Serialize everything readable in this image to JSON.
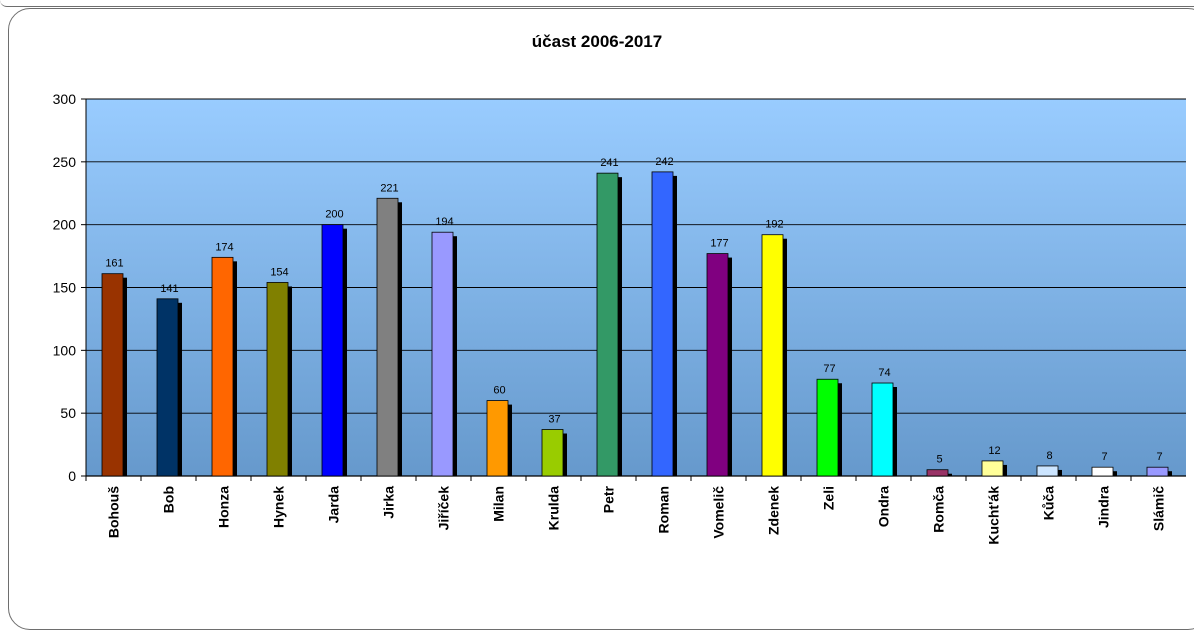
{
  "chart_data": {
    "type": "bar",
    "title": "účast 2006-2017",
    "xlabel": "",
    "ylabel": "",
    "ylim": [
      0,
      300
    ],
    "yticks": [
      0,
      50,
      100,
      150,
      200,
      250,
      300
    ],
    "grid": true,
    "legend": "none",
    "categories": [
      "Bohouš",
      "Bob",
      "Honza",
      "Hynek",
      "Jarda",
      "Jirka",
      "Jiříček",
      "Milan",
      "Krulda",
      "Petr",
      "Roman",
      "Vomelič",
      "Zdenek",
      "Zeli",
      "Ondra",
      "Romča",
      "Kucht'ák",
      "Kůča",
      "Jindra",
      "Slámič"
    ],
    "values": [
      161,
      141,
      174,
      154,
      200,
      221,
      194,
      60,
      37,
      241,
      242,
      177,
      192,
      77,
      74,
      5,
      12,
      8,
      7,
      7
    ],
    "colors": [
      "#993300",
      "#003366",
      "#ff6600",
      "#808000",
      "#0000ff",
      "#808080",
      "#9999ff",
      "#ff9900",
      "#99cc00",
      "#339966",
      "#3366ff",
      "#800080",
      "#ffff00",
      "#00ff00",
      "#00ffff",
      "#993366",
      "#ffff99",
      "#cce5ff",
      "#ffffff",
      "#9999ff"
    ],
    "background_gradient": [
      "#99ccff",
      "#6699cc"
    ]
  }
}
